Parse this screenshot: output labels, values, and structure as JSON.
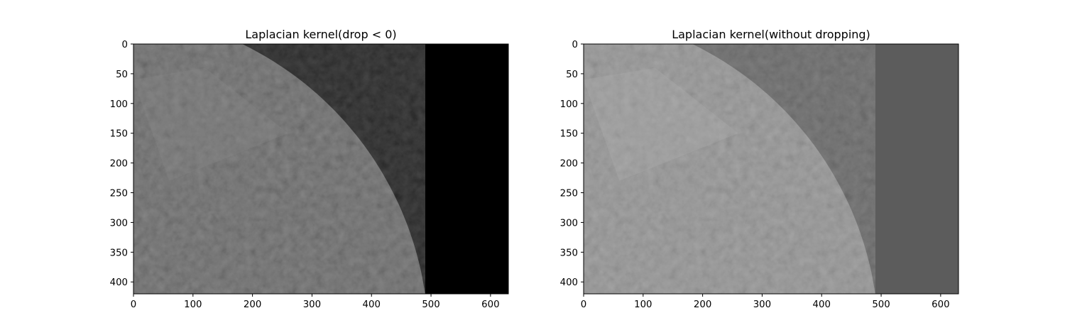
{
  "chart_data": [
    {
      "type": "image",
      "title": "Laplacian kernel(drop < 0)",
      "xlim": [
        0,
        630
      ],
      "ylim": [
        420,
        0
      ],
      "x_ticks": [
        0,
        100,
        200,
        300,
        400,
        500,
        600
      ],
      "y_ticks": [
        0,
        50,
        100,
        150,
        200,
        250,
        300,
        350,
        400
      ],
      "background_gray": "#000000",
      "moon_base": "#5a5a5a",
      "moon_light": "#8a8a8a"
    },
    {
      "type": "image",
      "title": "Laplacian kernel(without dropping)",
      "xlim": [
        0,
        630
      ],
      "ylim": [
        420,
        0
      ],
      "x_ticks": [
        0,
        100,
        200,
        300,
        400,
        500,
        600
      ],
      "y_ticks": [
        0,
        50,
        100,
        150,
        200,
        250,
        300,
        350,
        400
      ],
      "background_gray": "#5c5c5c",
      "moon_base": "#8e8e8e",
      "moon_light": "#b4b4b4"
    }
  ]
}
